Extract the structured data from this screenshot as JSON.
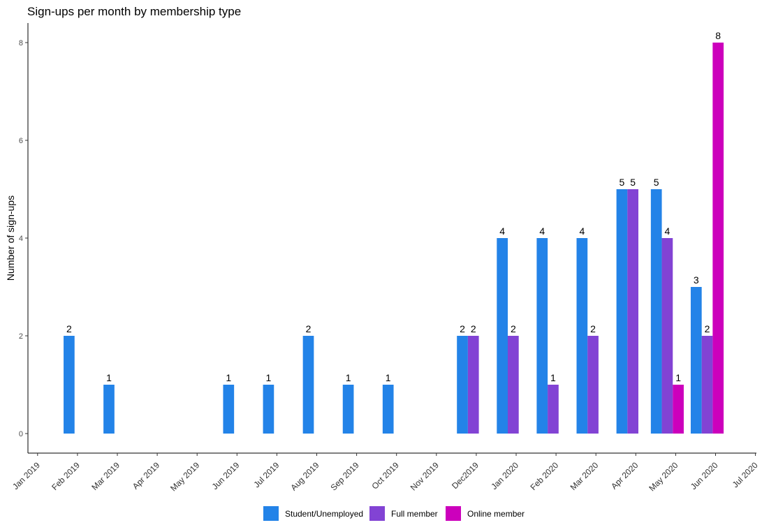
{
  "chart_data": {
    "type": "bar",
    "title": "Sign-ups per month by membership type",
    "xlabel": "",
    "ylabel": "Number of sign-ups",
    "ylim": [
      -0.4,
      8.4
    ],
    "yticks": [
      0,
      2,
      4,
      6,
      8
    ],
    "x_ticks": [
      "Jan 2019",
      "Feb 2019",
      "Mar 2019",
      "Apr 2019",
      "May 2019",
      "Jun 2019",
      "Jul 2019",
      "Aug 2019",
      "Sep 2019",
      "Oct 2019",
      "Nov 2019",
      "Dec 2019",
      "Jan 2020",
      "Feb 2020",
      "Mar 2020",
      "Apr 2020",
      "May 2020",
      "Jun 2020",
      "Jul 2020"
    ],
    "x_tick_texts": [
      "Jan 2019",
      "Feb 2019",
      "Mar 2019",
      "Apr 2019",
      "May 2019",
      "Jun 2019",
      "Jul 2019",
      "Aug 2019",
      "Sep 2019",
      "Oct 2019",
      "Nov 2019",
      "Dec2019",
      "Jan 2020",
      "Feb 2020",
      "Mar 2020",
      "Apr 2020",
      "May 2020",
      "Jun 2020",
      "Jul 2020"
    ],
    "categories": [
      "Jan 2019",
      "Feb 2019",
      "Mar 2019",
      "Apr 2019",
      "May 2019",
      "Jun 2019",
      "Jul 2019",
      "Aug 2019",
      "Sep 2019",
      "Oct 2019",
      "Nov 2019",
      "Dec 2019",
      "Jan 2020",
      "Feb 2020",
      "Mar 2020",
      "Apr 2020",
      "May 2020",
      "Jun 2020"
    ],
    "series": [
      {
        "name": "Student/Unemployed",
        "color": "#2383E8",
        "values": [
          2,
          1,
          0,
          0,
          1,
          1,
          2,
          1,
          1,
          0,
          2,
          4,
          4,
          4,
          5,
          5,
          3,
          0
        ]
      },
      {
        "name": "Full member",
        "color": "#8243D4",
        "values": [
          0,
          0,
          0,
          0,
          0,
          0,
          0,
          0,
          0,
          0,
          2,
          2,
          1,
          2,
          5,
          4,
          2,
          0
        ]
      },
      {
        "name": "Online member",
        "color": "#CC00BC",
        "values": [
          0,
          0,
          0,
          0,
          0,
          0,
          0,
          0,
          0,
          0,
          0,
          0,
          0,
          0,
          0,
          1,
          8,
          0
        ]
      }
    ],
    "legend_position": "bottom",
    "grid": false
  }
}
